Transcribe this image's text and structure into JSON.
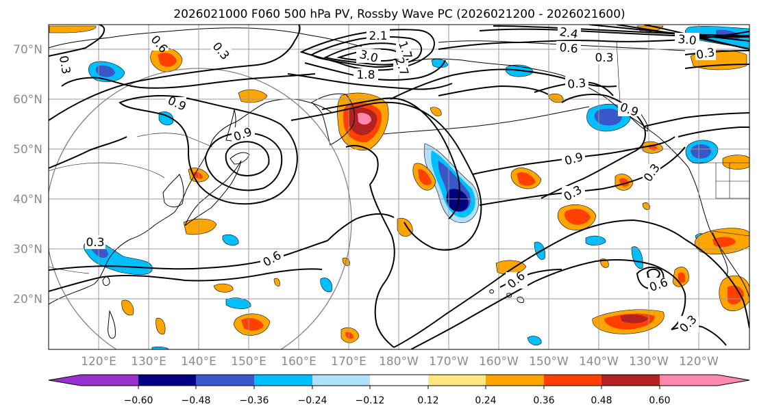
{
  "title": "2026021000 F060 500 hPa PV, Rossby Wave PC (2026021200 - 2026021600)",
  "map": {
    "lat_labels": [
      "70°N",
      "60°N",
      "50°N",
      "40°N",
      "30°N",
      "20°N"
    ],
    "lon_labels": [
      "120°E",
      "130°E",
      "140°E",
      "150°E",
      "160°E",
      "170°E",
      "180°W",
      "170°W",
      "160°W",
      "150°W",
      "140°W",
      "130°W",
      "120°W"
    ],
    "extent": {
      "lon_min": 110,
      "lon_max": 250,
      "lat_min": 10,
      "lat_max": 75
    },
    "contour_labels": [
      "0.3",
      "0.6",
      "0.9",
      "1.8",
      "2.1",
      "2.4",
      "3.0",
      "0.3",
      "0.9",
      "0.6",
      "0.3",
      "0.3",
      "0.6",
      "0.3",
      "0.9",
      "0.3",
      "0.3",
      "0.6",
      "0.6",
      "0.3",
      "0.3",
      "0.9",
      "3.0",
      "1.7",
      "2.7"
    ]
  },
  "colorbar": {
    "ticks": [
      "−0.60",
      "−0.48",
      "−0.36",
      "−0.24",
      "−0.12",
      "0.12",
      "0.24",
      "0.36",
      "0.48",
      "0.60"
    ],
    "colors": {
      "purple": "#9932cc",
      "navy": "#000080",
      "royal_blue": "#3a57c9",
      "deep_sky_blue": "#00bfff",
      "light_blue": "#b0e0fa",
      "white": "#ffffff",
      "light_yellow": "#ffe680",
      "orange": "#ffa500",
      "orange_red": "#ff4000",
      "firebrick": "#b22222",
      "pink": "#ff88b0"
    }
  }
}
